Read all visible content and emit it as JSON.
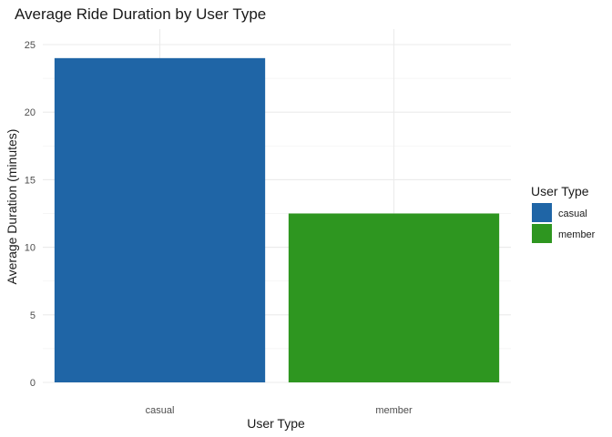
{
  "chart_data": {
    "type": "bar",
    "title": "Average Ride Duration by User Type",
    "xlabel": "User Type",
    "ylabel": "Average Duration (minutes)",
    "categories": [
      "casual",
      "member"
    ],
    "values": [
      24.0,
      12.5
    ],
    "ylim": [
      0,
      25
    ],
    "yticks": [
      0,
      5,
      10,
      15,
      20,
      25
    ],
    "grid": true,
    "legend": {
      "title": "User Type",
      "placement": "right",
      "entries": [
        "casual",
        "member"
      ]
    },
    "colors": {
      "casual": "#1f65a6",
      "member": "#2e9620"
    }
  }
}
